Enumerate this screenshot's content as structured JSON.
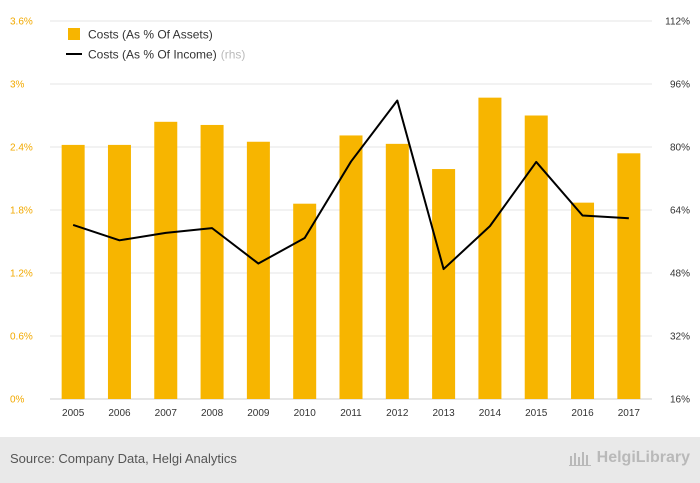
{
  "chart_data": {
    "type": "bar+line",
    "title": "",
    "categories": [
      "2005",
      "2006",
      "2007",
      "2008",
      "2009",
      "2010",
      "2011",
      "2012",
      "2013",
      "2014",
      "2015",
      "2016",
      "2017"
    ],
    "series": [
      {
        "name": "Costs (As % Of Assets)",
        "type": "bar",
        "axis": "left",
        "color": "#f7b500",
        "values": [
          2.42,
          2.42,
          2.64,
          2.61,
          2.45,
          1.86,
          2.51,
          2.43,
          2.19,
          2.87,
          2.7,
          1.87,
          2.34
        ]
      },
      {
        "name": "Costs (As % Of Income)",
        "legend_suffix": "(rhs)",
        "type": "line",
        "axis": "right",
        "color": "#000000",
        "values": [
          60.2,
          56.3,
          58.2,
          59.4,
          50.4,
          56.9,
          76.3,
          91.8,
          49.0,
          59.9,
          76.2,
          62.6,
          61.9
        ]
      }
    ],
    "yleft": {
      "min": 0,
      "max": 3.6,
      "ticks": [
        0,
        0.6,
        1.2,
        1.8,
        2.4,
        3.0,
        3.6
      ],
      "tick_labels": [
        "0%",
        "0.6%",
        "1.2%",
        "1.8%",
        "2.4%",
        "3%",
        "3.6%"
      ]
    },
    "yright": {
      "min": 16,
      "max": 112,
      "ticks": [
        16,
        32,
        48,
        64,
        80,
        96,
        112
      ],
      "tick_labels": [
        "16%",
        "32%",
        "48%",
        "64%",
        "80%",
        "96%",
        "112%"
      ]
    },
    "grid": true,
    "legend_position": "top-left"
  },
  "footer": {
    "source": "Source: Company Data, Helgi Analytics",
    "brand": "HelgiLibrary"
  }
}
